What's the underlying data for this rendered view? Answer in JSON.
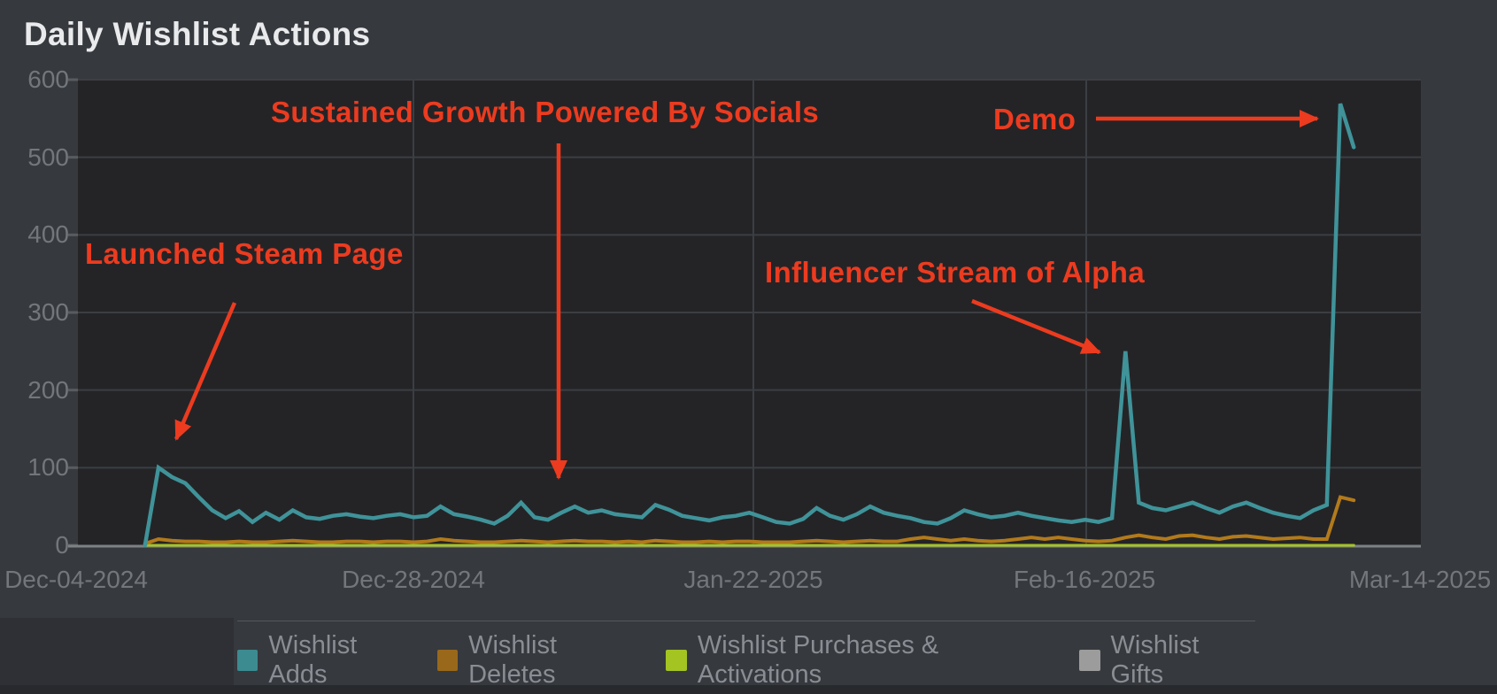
{
  "page": {
    "title": "Daily Wishlist Actions"
  },
  "chart_data": {
    "type": "line",
    "title": "Daily Wishlist Actions",
    "grid": true,
    "legend_position": "bottom",
    "x_axis": {
      "tick_labels": [
        "Dec-04-2024",
        "Dec-28-2024",
        "Jan-22-2025",
        "Feb-16-2025",
        "Mar-14-2025"
      ],
      "note": "daily dates from Dec-04-2024 to Mar-14-2025; series data begins Dec-09-2024 and ends Mar-09-2025"
    },
    "y_axis": {
      "min": 0,
      "max": 600,
      "tick_labels": [
        "0",
        "100",
        "200",
        "300",
        "400",
        "500",
        "600"
      ]
    },
    "series": [
      {
        "name": "Wishlist Adds",
        "color": "#3F9399",
        "swatch_color": "#3B8B91",
        "first_day_offset_from_dec04": 5,
        "daily_values": [
          0,
          100,
          88,
          80,
          62,
          45,
          35,
          44,
          30,
          42,
          33,
          45,
          36,
          34,
          38,
          40,
          37,
          35,
          38,
          40,
          36,
          38,
          50,
          40,
          37,
          33,
          28,
          38,
          55,
          36,
          33,
          42,
          50,
          42,
          45,
          40,
          38,
          36,
          52,
          46,
          38,
          35,
          32,
          36,
          38,
          42,
          36,
          30,
          28,
          34,
          48,
          38,
          33,
          40,
          50,
          42,
          38,
          35,
          30,
          28,
          35,
          45,
          40,
          36,
          38,
          42,
          38,
          35,
          32,
          30,
          33,
          30,
          35,
          250,
          55,
          48,
          45,
          50,
          55,
          48,
          42,
          50,
          55,
          48,
          42,
          38,
          35,
          45,
          52,
          569,
          513
        ]
      },
      {
        "name": "Wishlist Deletes",
        "color": "#B27A1B",
        "swatch_color": "#99681A",
        "first_day_offset_from_dec04": 5,
        "daily_values": [
          2,
          8,
          6,
          5,
          5,
          4,
          4,
          5,
          4,
          4,
          5,
          6,
          5,
          4,
          4,
          5,
          5,
          4,
          5,
          5,
          4,
          5,
          8,
          6,
          5,
          4,
          4,
          5,
          6,
          5,
          4,
          5,
          6,
          5,
          5,
          4,
          5,
          4,
          6,
          5,
          4,
          4,
          5,
          4,
          5,
          5,
          4,
          4,
          4,
          5,
          6,
          5,
          4,
          5,
          6,
          5,
          5,
          8,
          10,
          8,
          6,
          8,
          6,
          5,
          6,
          8,
          10,
          8,
          10,
          8,
          6,
          5,
          6,
          10,
          13,
          10,
          8,
          12,
          13,
          10,
          8,
          11,
          12,
          10,
          8,
          9,
          10,
          8,
          8,
          62,
          58
        ]
      },
      {
        "name": "Wishlist Purchases & Activations",
        "color": "#A6C426",
        "swatch_color": "#A4C422",
        "first_day_offset_from_dec04": 5,
        "daily_values": [
          0,
          0,
          0,
          0,
          0,
          0,
          0,
          0,
          0,
          0,
          0,
          0,
          0,
          0,
          0,
          0,
          0,
          0,
          0,
          0,
          0,
          0,
          0,
          0,
          0,
          0,
          0,
          0,
          0,
          0,
          0,
          0,
          0,
          0,
          0,
          0,
          0,
          0,
          0,
          0,
          0,
          0,
          0,
          0,
          0,
          0,
          0,
          0,
          0,
          0,
          0,
          0,
          0,
          0,
          0,
          0,
          0,
          0,
          0,
          0,
          0,
          0,
          0,
          0,
          0,
          0,
          0,
          0,
          0,
          0,
          0,
          0,
          0,
          0,
          0,
          0,
          0,
          0,
          0,
          0,
          0,
          0,
          0,
          0,
          0,
          0,
          0,
          0,
          0,
          0,
          0
        ]
      },
      {
        "name": "Wishlist Gifts",
        "color": "#A9ABA4",
        "swatch_color": "#9C9C9C",
        "first_day_offset_from_dec04": 5,
        "daily_values": [
          0,
          0,
          0,
          0,
          0,
          0,
          0,
          0,
          0,
          0,
          0,
          0,
          0,
          0,
          0,
          0,
          0,
          0,
          0,
          0,
          0,
          0,
          0,
          0,
          0,
          0,
          0,
          0,
          0,
          0,
          0,
          0,
          0,
          0,
          0,
          0,
          0,
          0,
          0,
          0,
          0,
          0,
          0,
          0,
          0,
          0,
          0,
          0,
          0,
          0,
          0,
          0,
          0,
          0,
          0,
          0,
          0,
          0,
          0,
          0,
          0,
          0,
          0,
          0,
          0,
          0,
          0,
          0,
          0,
          0,
          0,
          0,
          0,
          0,
          0,
          0,
          0,
          0,
          0,
          0,
          0,
          0,
          0,
          0,
          0,
          0,
          0,
          0,
          0,
          0,
          0
        ]
      }
    ],
    "annotations": [
      {
        "text": "Launched Steam Page"
      },
      {
        "text": "Sustained Growth Powered By Socials"
      },
      {
        "text": "Influencer Stream of Alpha"
      },
      {
        "text": "Demo"
      }
    ],
    "annotation_color": "#EC3B1F"
  }
}
